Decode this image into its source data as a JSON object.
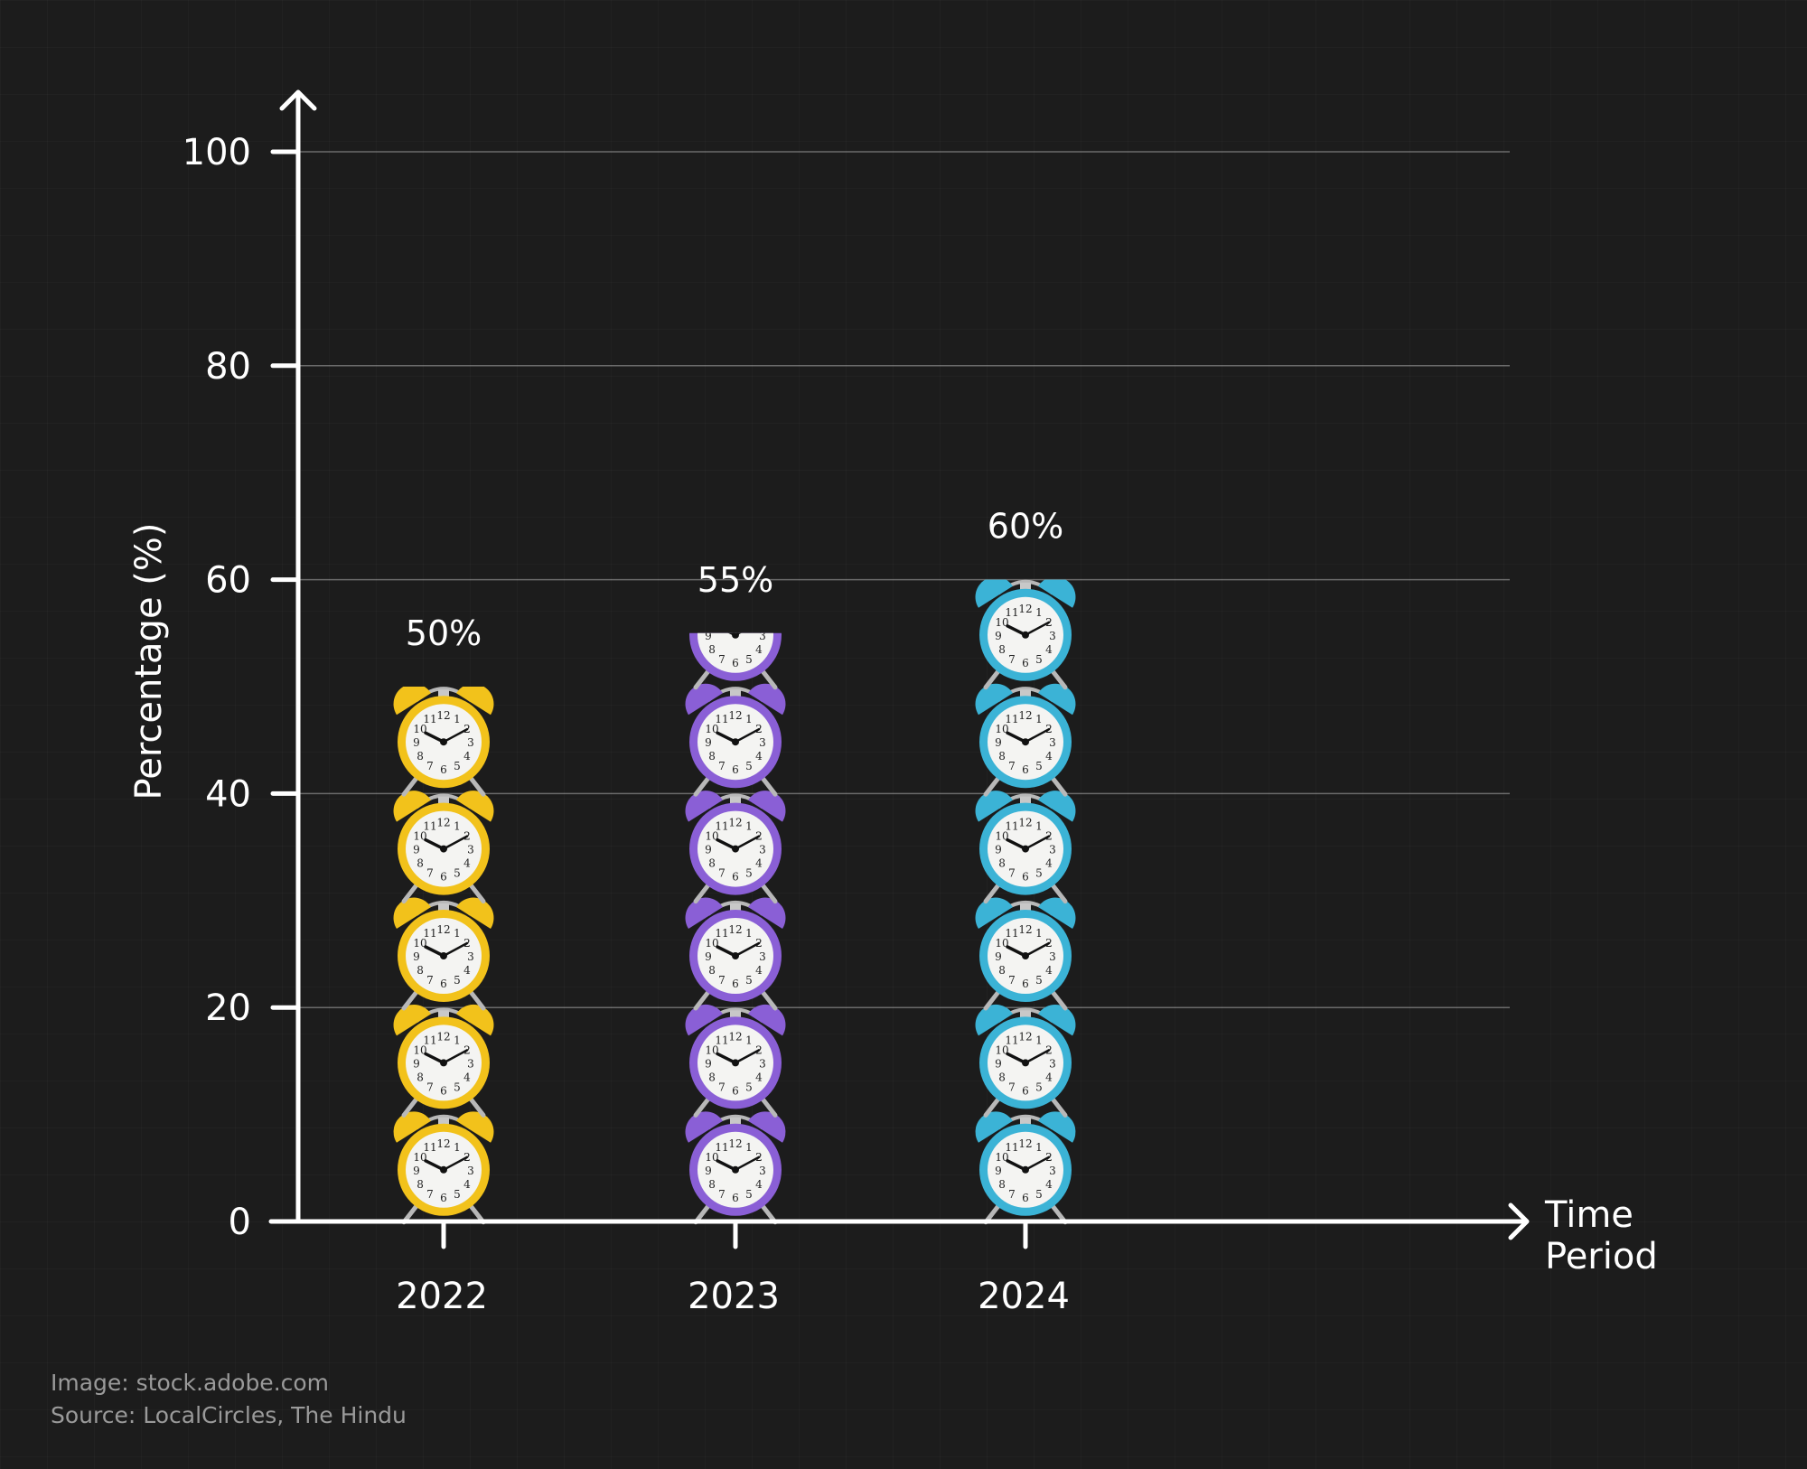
{
  "chart_data": {
    "type": "bar",
    "title": "",
    "xlabel": "Time Period",
    "xlabel_lines": [
      "Time",
      "Period"
    ],
    "ylabel": "Percentage (%)",
    "ylim": [
      0,
      100
    ],
    "yticks": [
      0,
      20,
      40,
      60,
      80,
      100
    ],
    "ytick_labels": [
      "0",
      "20",
      "40",
      "60",
      "80",
      "100"
    ],
    "grid": "horizontal",
    "categories": [
      "2022",
      "2023",
      "2024"
    ],
    "values": [
      50,
      55,
      60
    ],
    "data_labels": [
      "50%",
      "55%",
      "60%"
    ],
    "bar_style": "stacked alarm-clock pictograms",
    "bar_colors": [
      "#f2c21b",
      "#8a5fd6",
      "#3bb3d6"
    ]
  },
  "footer": {
    "image_credit": "Image: stock.adobe.com",
    "source": "Source: LocalCircles, The Hindu"
  }
}
